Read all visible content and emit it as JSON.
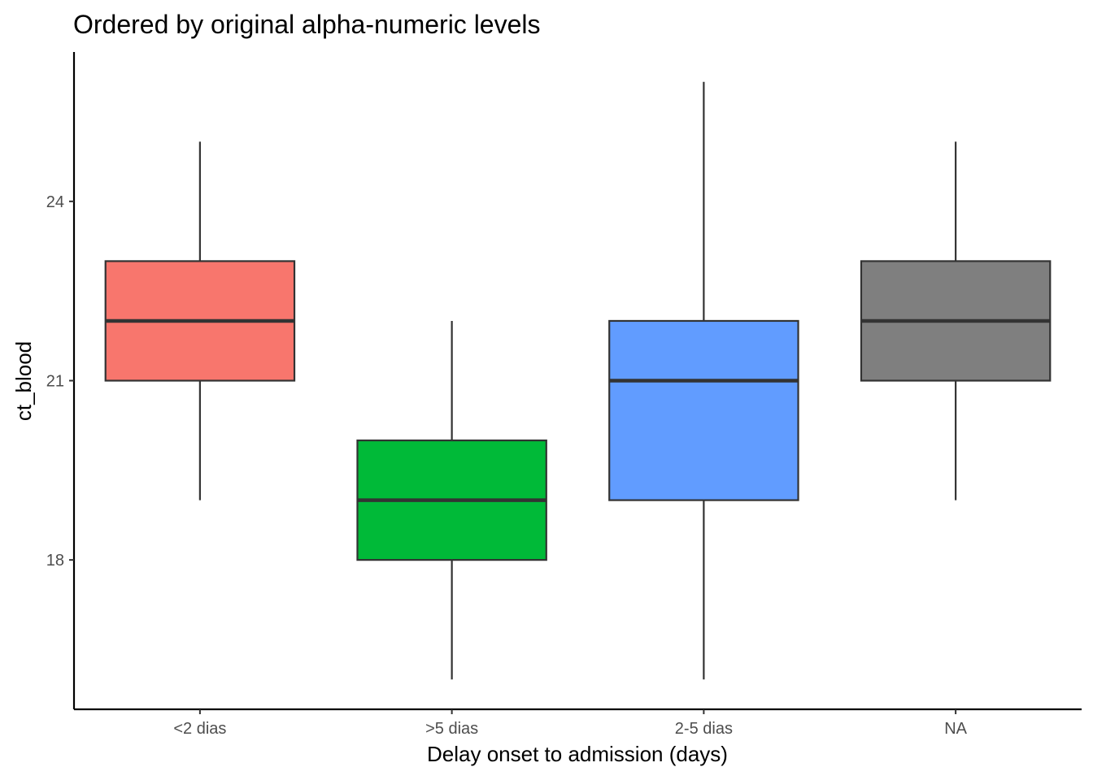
{
  "chart_data": {
    "type": "boxplot",
    "title": "Ordered by original alpha-numeric levels",
    "xlabel": "Delay onset to admission (days)",
    "ylabel": "ct_blood",
    "categories": [
      "<2 dias",
      ">5 dias",
      "2-5 dias",
      "NA"
    ],
    "boxes": [
      {
        "category": "<2 dias",
        "whisker_low": 19,
        "q1": 21,
        "median": 22,
        "q3": 23,
        "whisker_high": 25,
        "color": "#F8766D"
      },
      {
        "category": ">5 dias",
        "whisker_low": 16,
        "q1": 18,
        "median": 19,
        "q3": 20,
        "whisker_high": 22,
        "color": "#00BA38"
      },
      {
        "category": "2-5 dias",
        "whisker_low": 16,
        "q1": 19,
        "median": 21,
        "q3": 22,
        "whisker_high": 26,
        "color": "#619CFF"
      },
      {
        "category": "NA",
        "whisker_low": 19,
        "q1": 21,
        "median": 22,
        "q3": 23,
        "whisker_high": 25,
        "color": "#7F7F7F"
      }
    ],
    "yticks": [
      18,
      21,
      24
    ],
    "ytick_labels": [
      "18",
      "21",
      "24"
    ],
    "ylim": [
      15.5,
      26.5
    ],
    "grid": false,
    "legend": "none",
    "line_color": "#333333",
    "axis_color": "#000000"
  }
}
